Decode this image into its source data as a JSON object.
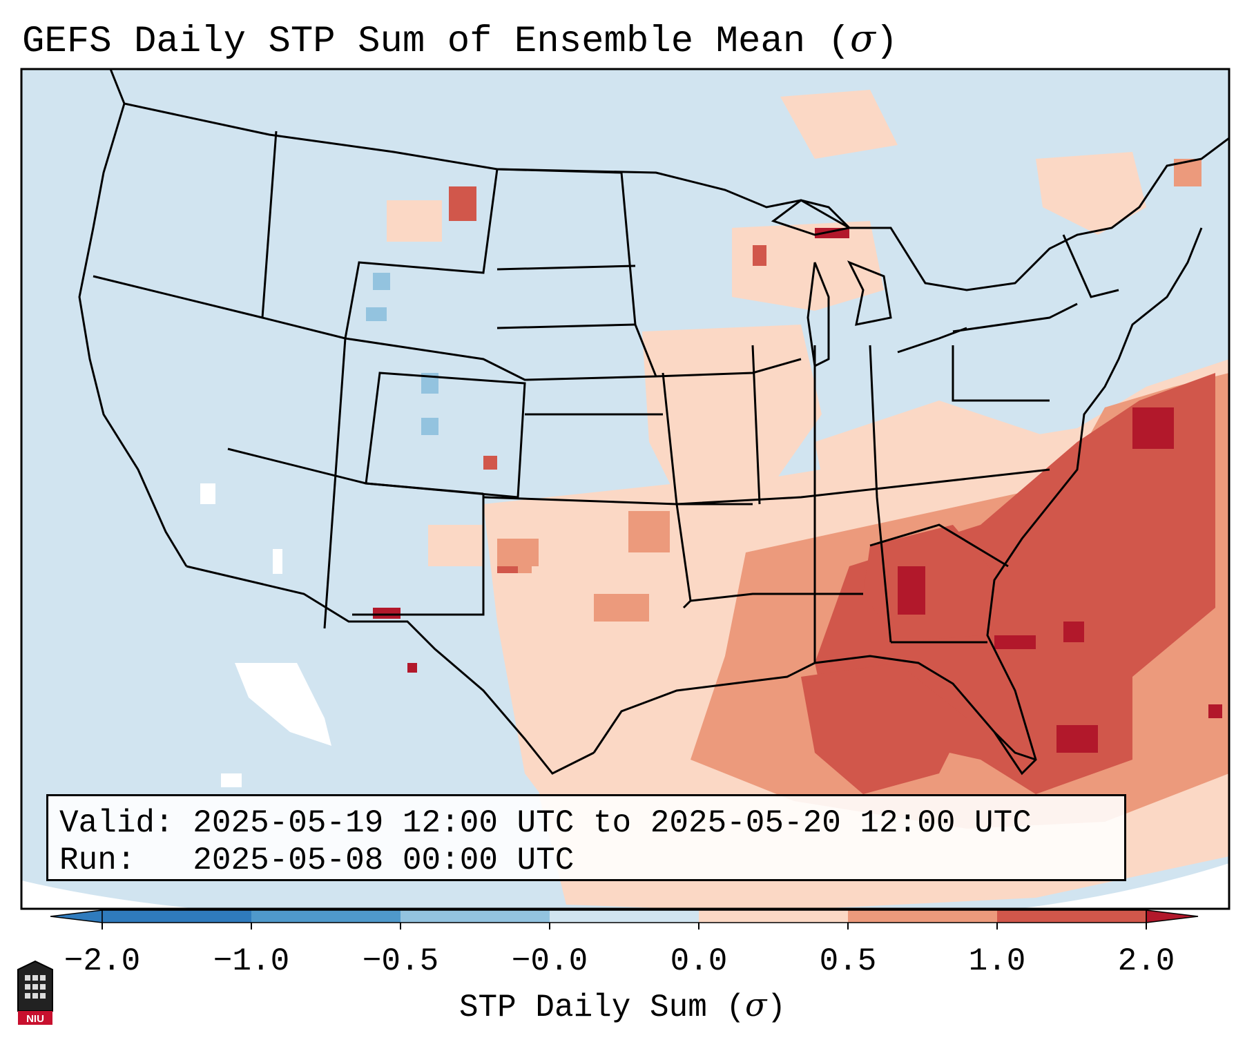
{
  "title": {
    "main": "GEFS Daily STP Sum of Ensemble Mean (",
    "symbol": "σ",
    "close": ")"
  },
  "info": {
    "valid_label": "Valid:",
    "valid_value": "2025-05-19 12:00 UTC to 2025-05-20 12:00 UTC",
    "run_label": "Run:",
    "run_value": "2025-05-08 00:00 UTC"
  },
  "colorbar": {
    "ticks": [
      "−2.0",
      "−1.0",
      "−0.5",
      "−0.0",
      "0.0",
      "0.5",
      "1.0",
      "2.0"
    ],
    "label_text": "STP Daily Sum (",
    "label_symbol": "σ",
    "label_close": ")",
    "colors": [
      "#2f7bbd",
      "#4f99cb",
      "#93c3df",
      "#d1e4f0",
      "#fbd8c5",
      "#ec9a7c",
      "#d1574b",
      "#b2182b"
    ]
  },
  "map": {
    "region": "Continental United States",
    "colors": {
      "ocean": "#d1e4f0",
      "light_blue": "#93c3df",
      "neutral": "#ffffff",
      "light_red": "#fbd8c5",
      "mid_red": "#ec9a7c",
      "red": "#d1574b",
      "dark_red": "#b2182b"
    }
  },
  "logo": {
    "text": "NIU"
  }
}
